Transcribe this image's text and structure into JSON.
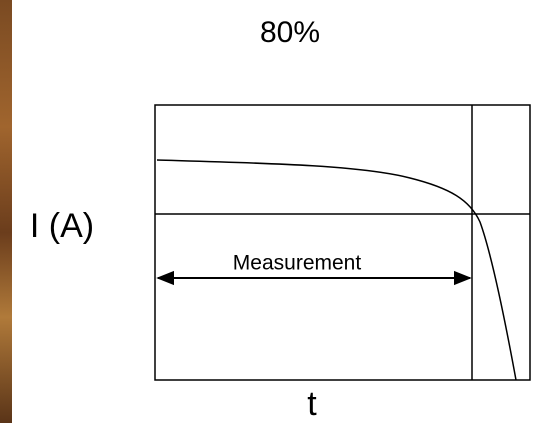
{
  "title": "80%",
  "y_label": "I (A)",
  "x_label": "t",
  "annotation": "Measurement"
}
